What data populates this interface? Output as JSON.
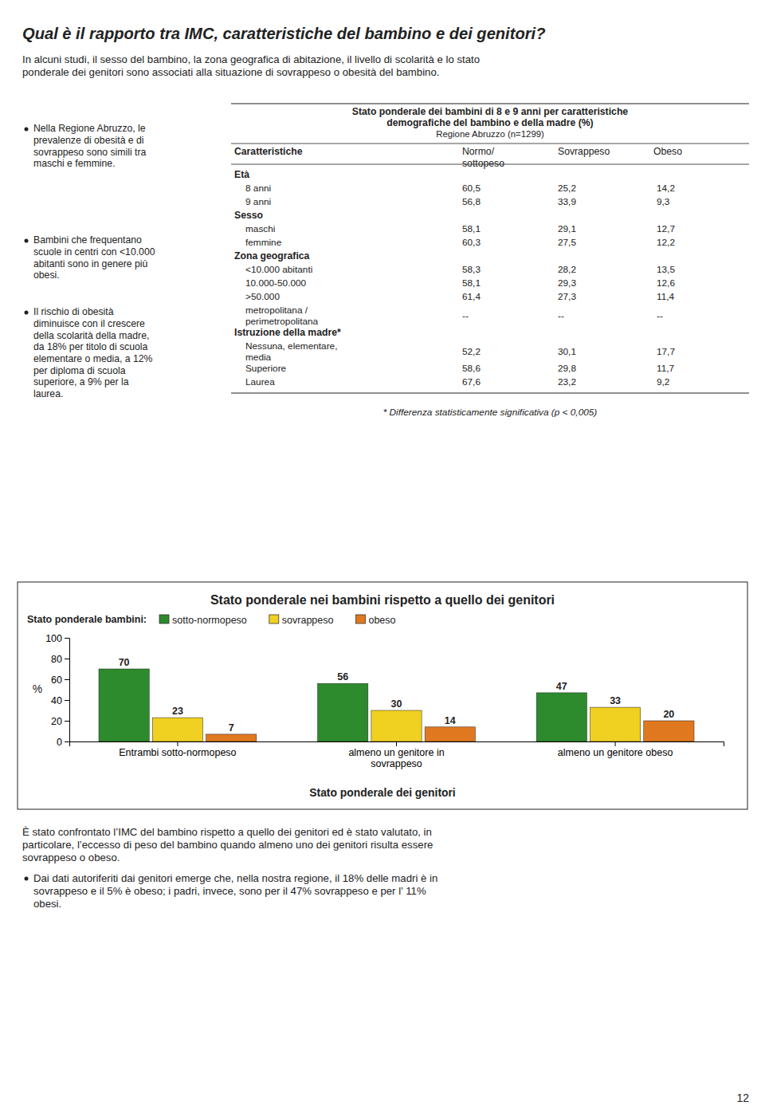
{
  "page": {
    "title": "Qual è il rapporto tra IMC, caratteristiche del bambino e dei genitori?",
    "intro_text": "In alcuni studi, il sesso del bambino, la zona geografica di abitazione, il livello di scolarità e lo stato\nponderale dei genitori sono associati alla situazione di sovrappeso o obesità del bambino.",
    "table": {
      "title_lines": [
        "Stato ponderale dei bambini di 8 e 9 anni per caratteristiche",
        "demografiche del bambino e della madre (%)",
        "Regione Abruzzo (n=1299)"
      ],
      "columns": [
        "Caratteristiche",
        "Normo/\nsottopeso",
        "Sovrappeso",
        "Obeso"
      ],
      "rows": [
        {
          "section": "Età"
        },
        {
          "label": "8 anni",
          "values": [
            "60,5",
            "25,2",
            "14,2"
          ]
        },
        {
          "label": "9 anni",
          "values": [
            "56,8",
            "33,9",
            "9,3"
          ]
        },
        {
          "section": "Sesso"
        },
        {
          "label": "maschi",
          "values": [
            "58,1",
            "29,1",
            "12,7"
          ]
        },
        {
          "label": "femmine",
          "values": [
            "60,3",
            "27,5",
            "12,2"
          ]
        },
        {
          "section": "Zona geografica"
        },
        {
          "label": "<10.000 abitanti",
          "values": [
            "58,3",
            "28,2",
            "13,5"
          ]
        },
        {
          "label": "10.000-50.000",
          "values": [
            "58,1",
            "29,3",
            "12,6"
          ]
        },
        {
          "label": ">50.000",
          "values": [
            "61,4",
            "27,3",
            "11,4"
          ]
        },
        {
          "label": "metropolitana /\nperimetropolitana",
          "values": [
            "--",
            "--",
            "--"
          ]
        },
        {
          "section": "Istruzione della madre*"
        },
        {
          "label": "Nessuna, elementare,\nmedia",
          "values": [
            "52,2",
            "30,1",
            "17,7"
          ]
        },
        {
          "label": "Superiore",
          "values": [
            "58,6",
            "29,8",
            "11,7"
          ]
        },
        {
          "label": "Laurea",
          "values": [
            "67,6",
            "23,2",
            "9,2"
          ]
        }
      ],
      "footnote": "* Differenza statisticamente significativa (p < 0,005)"
    },
    "bullet_texts": [
      "Nella Regione Abruzzo, le\nprevalenze di obesità e di\nsovrappeso sono simili tra\nmaschi e femmine.",
      "Bambini che frequentano\nscuole in centri con <10.000\nabitanti sono in genere più\nobesi.",
      "Il rischio di obesità\ndiminuisce con il crescere\ndella scolarità della madre,\nda 18% per titolo di scuola\nelementare o media, a 12%\nper diploma di scuola\nsuperiore, a 9% per la\nlaurea."
    ],
    "bottom_text": "È stato confrontato l’IMC del bambino rispetto a quello dei genitori ed è stato valutato, in\nparticolare, l’eccesso di peso del bambino quando almeno uno dei genitori risulta essere\nsovrappeso o obeso.",
    "bottom_bullet": "Dai dati autoriferiti dai genitori emerge che, nella nostra regione, il 18% delle madri è in\nsovrappeso e il 5% è obeso; i padri, invece, sono per il  47% sovrappeso e per l’ 11%\nobesi.",
    "page_number": "12"
  },
  "chart_data": {
    "type": "bar",
    "title": "Stato ponderale nei bambini rispetto a quello dei genitori",
    "legend_title": "Stato ponderale bambini:",
    "x_label": "Stato ponderale dei genitori",
    "y_label": "%",
    "categories": [
      "Entrambi sotto-normopeso",
      "almeno un genitore in\nsovrappeso",
      "almeno un genitore obeso"
    ],
    "series": [
      {
        "name": "sotto-normopeso",
        "color": "#2d8a2d",
        "values": [
          70,
          56,
          47
        ]
      },
      {
        "name": "sovrappeso",
        "color": "#f0d020",
        "values": [
          23,
          30,
          33
        ]
      },
      {
        "name": "obeso",
        "color": "#e07820",
        "values": [
          7,
          14,
          20
        ]
      }
    ],
    "ylim": [
      0,
      100
    ],
    "yticks": [
      0,
      20,
      40,
      60,
      80,
      100
    ],
    "grid": false,
    "legend": "top",
    "data_labels": true
  }
}
